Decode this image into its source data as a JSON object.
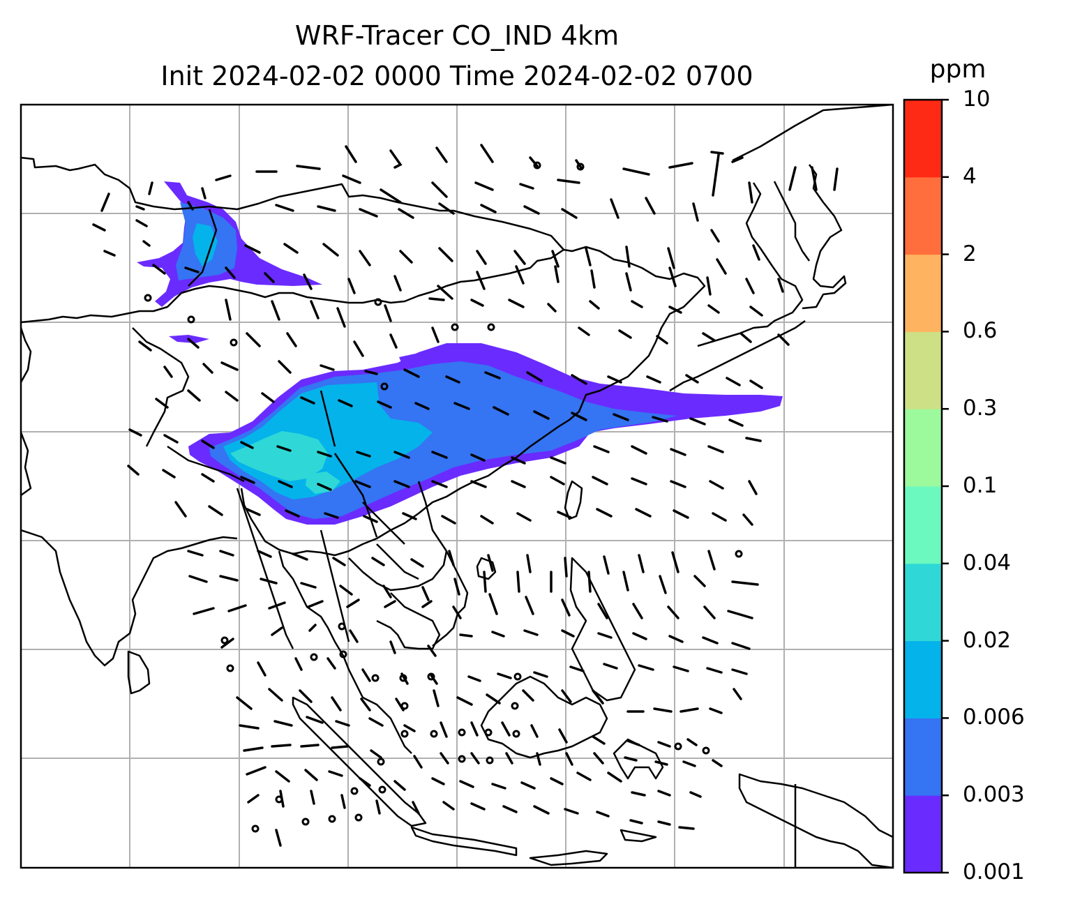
{
  "title": {
    "line1": "WRF-Tracer CO_IND 4km",
    "line2": "Init 2024-02-02 0000 Time 2024-02-02 0700"
  },
  "colorbar": {
    "unit": "ppm",
    "levels": [
      "0.001",
      "0.003",
      "0.006",
      "0.02",
      "0.04",
      "0.1",
      "0.3",
      "0.6",
      "2",
      "4",
      "10"
    ],
    "colors": [
      "#6a2bff",
      "#3574f2",
      "#04b3ea",
      "#2fd8d6",
      "#6bf9bf",
      "#9cf99c",
      "#cde085",
      "#fdb360",
      "#ff6e3c",
      "#ff2a15"
    ]
  },
  "map": {
    "gridlines": true,
    "features": [
      "coastlines",
      "country-borders",
      "wind-barbs",
      "co-tracer-plume"
    ]
  }
}
